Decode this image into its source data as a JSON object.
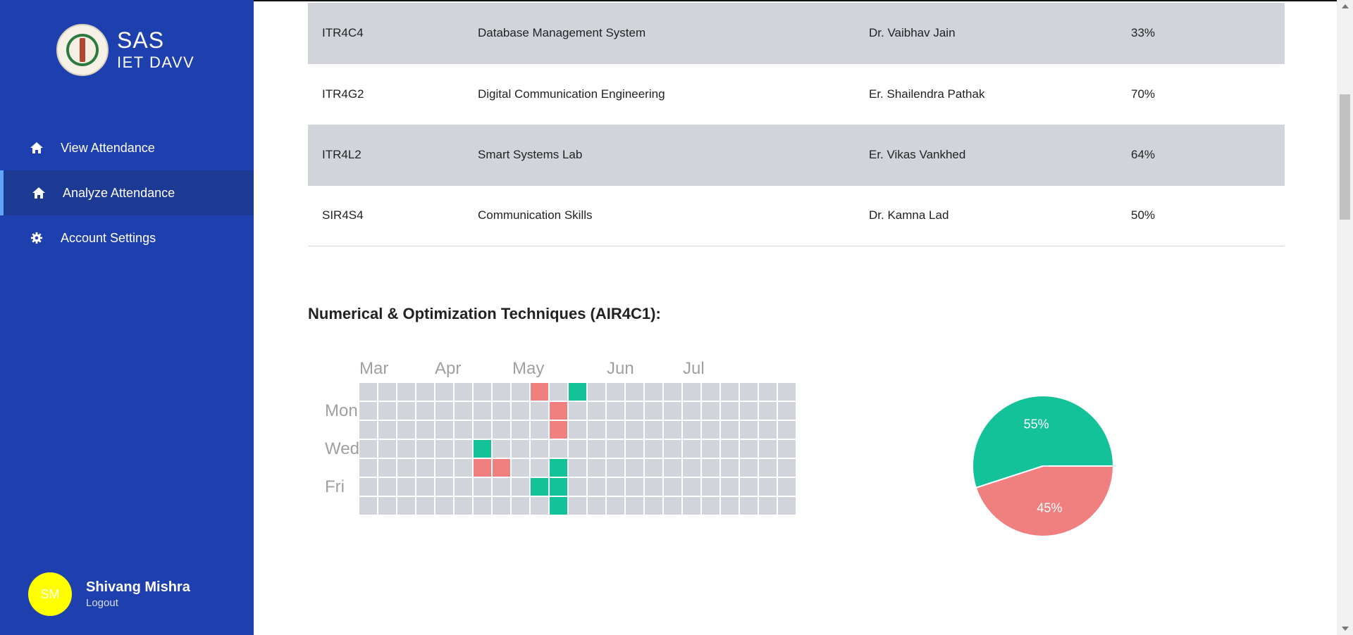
{
  "sidebar": {
    "brand_title": "SAS",
    "brand_subtitle": "IET DAVV",
    "items": [
      {
        "label": "View Attendance",
        "icon": "home-icon",
        "active": false
      },
      {
        "label": "Analyze Attendance",
        "icon": "home-icon",
        "active": true
      },
      {
        "label": "Account Settings",
        "icon": "gear-icon",
        "active": false
      }
    ],
    "user": {
      "initials": "SM",
      "name": "Shivang Mishra",
      "logout_label": "Logout"
    }
  },
  "table": {
    "rows": [
      {
        "code": "ITR4C4",
        "subject": "Database Management System",
        "teacher": "Dr. Vaibhav Jain",
        "percent": "33%"
      },
      {
        "code": "ITR4G2",
        "subject": "Digital Communication Engineering",
        "teacher": "Er. Shailendra Pathak",
        "percent": "70%"
      },
      {
        "code": "ITR4L2",
        "subject": "Smart Systems Lab",
        "teacher": "Er. Vikas Vankhed",
        "percent": "64%"
      },
      {
        "code": "SIR4S4",
        "subject": "Communication Skills",
        "teacher": "Dr. Kamna Lad",
        "percent": "50%"
      }
    ]
  },
  "section_title": "Numerical & Optimization Techniques (AIR4C1):",
  "heatmap": {
    "months": [
      "Mar",
      "Apr",
      "May",
      "Jun",
      "Jul"
    ],
    "days": [
      "Mon",
      "Wed",
      "Fri"
    ],
    "weeks": 23,
    "present": [
      [
        11,
        0
      ],
      [
        6,
        3
      ],
      [
        10,
        4
      ],
      [
        9,
        5
      ],
      [
        10,
        5
      ],
      [
        10,
        6
      ]
    ],
    "absent": [
      [
        9,
        0
      ],
      [
        10,
        1
      ],
      [
        10,
        2
      ],
      [
        6,
        4
      ],
      [
        7,
        4
      ]
    ]
  },
  "chart_data": {
    "type": "pie",
    "labels": [
      "Present",
      "Absent"
    ],
    "values": [
      55,
      45
    ],
    "display_labels": [
      "55%",
      "45%"
    ],
    "colors": [
      "#14c29a",
      "#f08080"
    ]
  },
  "colors": {
    "sidebar": "#1e40af",
    "present": "#14c29a",
    "absent": "#f08080",
    "empty": "#d1d5db",
    "avatar": "#ffff00"
  }
}
